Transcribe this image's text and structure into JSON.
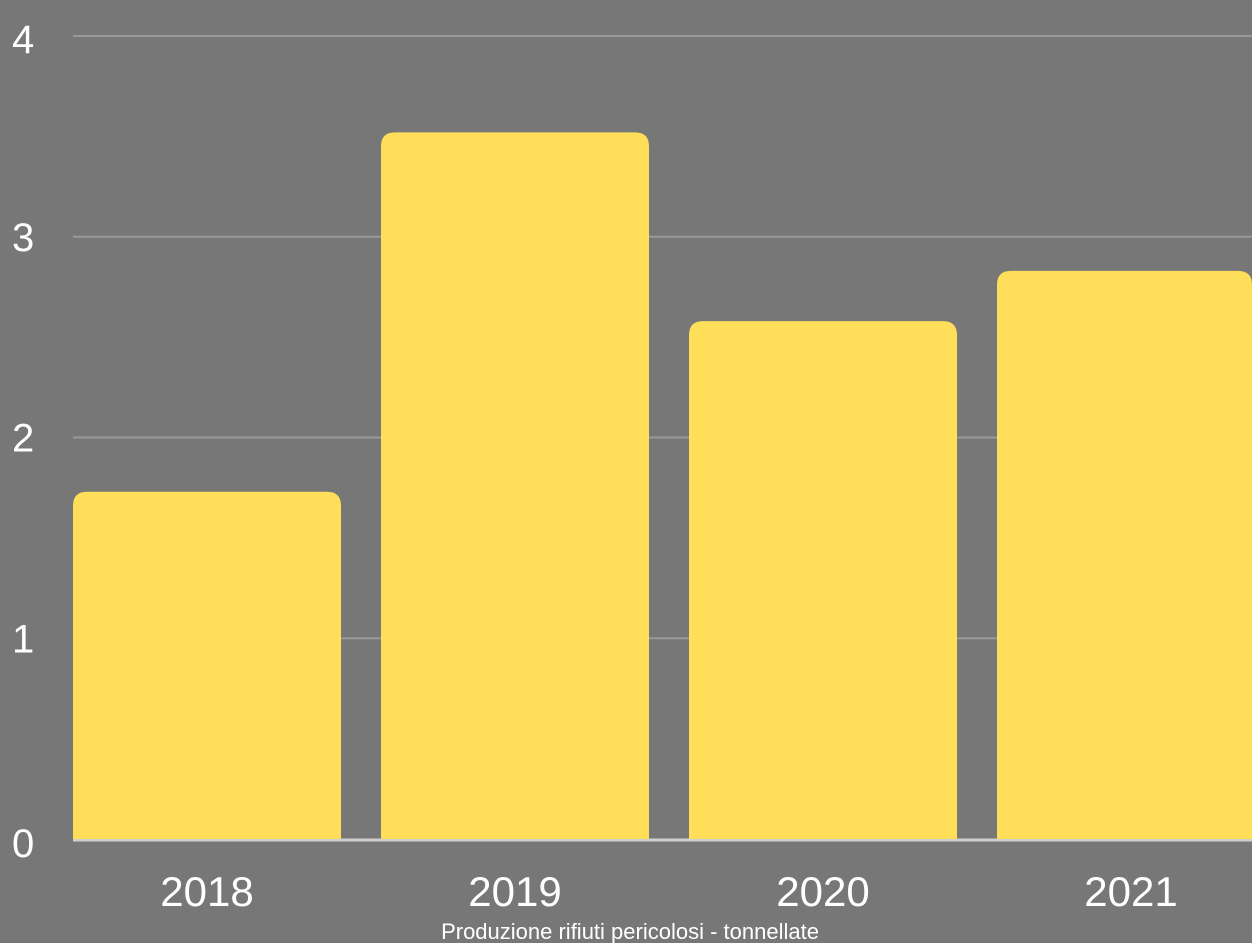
{
  "chart_data": {
    "type": "bar",
    "categories": [
      "2018",
      "2019",
      "2020",
      "2021"
    ],
    "values": [
      1.73,
      3.52,
      2.58,
      2.83
    ],
    "title": "",
    "xlabel": "Produzione rifiuti pericolosi - tonnellate",
    "ylabel": "",
    "ylim": [
      0,
      4
    ],
    "yticks": [
      "0",
      "1",
      "2",
      "3",
      "4"
    ],
    "grid": true,
    "legend": "none",
    "colors": {
      "background": "#777777",
      "bar": "#FFDE59",
      "gridline": "#999999",
      "baseline": "#cfcfcf",
      "text": "#ffffff"
    }
  }
}
